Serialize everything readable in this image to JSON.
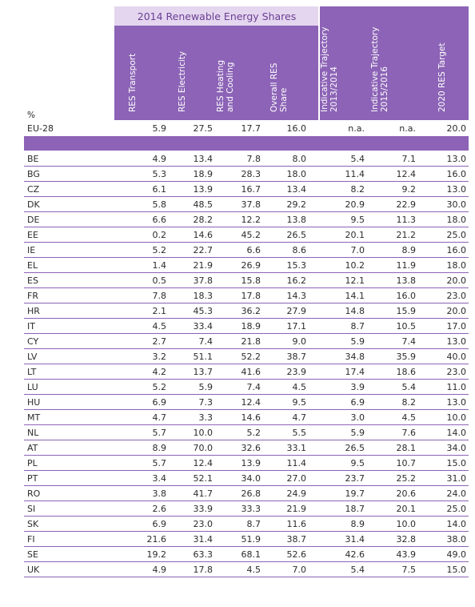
{
  "header": {
    "group_title": "2014 Renewable Energy Shares",
    "unit_label": "%",
    "columns": [
      "RES Transport",
      "RES Electricity",
      "RES Heating\nand Cooling",
      "Overall RES\nShare",
      "Indicative Trajectory\n2013/2014",
      "Indicative Trajectory\n2015/2016",
      "2020 RES Target"
    ]
  },
  "eu_row": {
    "country": "EU-28",
    "values": [
      "5.9",
      "27.5",
      "17.7",
      "16.0",
      "n.a.",
      "n.a.",
      "20.0"
    ]
  },
  "rows": [
    {
      "country": "BE",
      "values": [
        "4.9",
        "13.4",
        "7.8",
        "8.0",
        "5.4",
        "7.1",
        "13.0"
      ]
    },
    {
      "country": "BG",
      "values": [
        "5.3",
        "18.9",
        "28.3",
        "18.0",
        "11.4",
        "12.4",
        "16.0"
      ]
    },
    {
      "country": "CZ",
      "values": [
        "6.1",
        "13.9",
        "16.7",
        "13.4",
        "8.2",
        "9.2",
        "13.0"
      ]
    },
    {
      "country": "DK",
      "values": [
        "5.8",
        "48.5",
        "37.8",
        "29.2",
        "20.9",
        "22.9",
        "30.0"
      ]
    },
    {
      "country": "DE",
      "values": [
        "6.6",
        "28.2",
        "12.2",
        "13.8",
        "9.5",
        "11.3",
        "18.0"
      ]
    },
    {
      "country": "EE",
      "values": [
        "0.2",
        "14.6",
        "45.2",
        "26.5",
        "20.1",
        "21.2",
        "25.0"
      ]
    },
    {
      "country": "IE",
      "values": [
        "5.2",
        "22.7",
        "6.6",
        "8.6",
        "7.0",
        "8.9",
        "16.0"
      ]
    },
    {
      "country": "EL",
      "values": [
        "1.4",
        "21.9",
        "26.9",
        "15.3",
        "10.2",
        "11.9",
        "18.0"
      ]
    },
    {
      "country": "ES",
      "values": [
        "0.5",
        "37.8",
        "15.8",
        "16.2",
        "12.1",
        "13.8",
        "20.0"
      ]
    },
    {
      "country": "FR",
      "values": [
        "7.8",
        "18.3",
        "17.8",
        "14.3",
        "14.1",
        "16.0",
        "23.0"
      ]
    },
    {
      "country": "HR",
      "values": [
        "2.1",
        "45.3",
        "36.2",
        "27.9",
        "14.8",
        "15.9",
        "20.0"
      ]
    },
    {
      "country": "IT",
      "values": [
        "4.5",
        "33.4",
        "18.9",
        "17.1",
        "8.7",
        "10.5",
        "17.0"
      ]
    },
    {
      "country": "CY",
      "values": [
        "2.7",
        "7.4",
        "21.8",
        "9.0",
        "5.9",
        "7.4",
        "13.0"
      ]
    },
    {
      "country": "LV",
      "values": [
        "3.2",
        "51.1",
        "52.2",
        "38.7",
        "34.8",
        "35.9",
        "40.0"
      ]
    },
    {
      "country": "LT",
      "values": [
        "4.2",
        "13.7",
        "41.6",
        "23.9",
        "17.4",
        "18.6",
        "23.0"
      ]
    },
    {
      "country": "LU",
      "values": [
        "5.2",
        "5.9",
        "7.4",
        "4.5",
        "3.9",
        "5.4",
        "11.0"
      ]
    },
    {
      "country": "HU",
      "values": [
        "6.9",
        "7.3",
        "12.4",
        "9.5",
        "6.9",
        "8.2",
        "13.0"
      ]
    },
    {
      "country": "MT",
      "values": [
        "4.7",
        "3.3",
        "14.6",
        "4.7",
        "3.0",
        "4.5",
        "10.0"
      ]
    },
    {
      "country": "NL",
      "values": [
        "5.7",
        "10.0",
        "5.2",
        "5.5",
        "5.9",
        "7.6",
        "14.0"
      ]
    },
    {
      "country": "AT",
      "values": [
        "8.9",
        "70.0",
        "32.6",
        "33.1",
        "26.5",
        "28.1",
        "34.0"
      ]
    },
    {
      "country": "PL",
      "values": [
        "5.7",
        "12.4",
        "13.9",
        "11.4",
        "9.5",
        "10.7",
        "15.0"
      ]
    },
    {
      "country": "PT",
      "values": [
        "3.4",
        "52.1",
        "34.0",
        "27.0",
        "23.7",
        "25.2",
        "31.0"
      ]
    },
    {
      "country": "RO",
      "values": [
        "3.8",
        "41.7",
        "26.8",
        "24.9",
        "19.7",
        "20.6",
        "24.0"
      ]
    },
    {
      "country": "SI",
      "values": [
        "2.6",
        "33.9",
        "33.3",
        "21.9",
        "18.7",
        "20.1",
        "25.0"
      ]
    },
    {
      "country": "SK",
      "values": [
        "6.9",
        "23.0",
        "8.7",
        "11.6",
        "8.9",
        "10.0",
        "14.0"
      ]
    },
    {
      "country": "FI",
      "values": [
        "21.6",
        "31.4",
        "51.9",
        "38.7",
        "31.4",
        "32.8",
        "38.0"
      ]
    },
    {
      "country": "SE",
      "values": [
        "19.2",
        "63.3",
        "68.1",
        "52.6",
        "42.6",
        "43.9",
        "49.0"
      ]
    },
    {
      "country": "UK",
      "values": [
        "4.9",
        "17.8",
        "4.5",
        "7.0",
        "5.4",
        "7.5",
        "15.0"
      ]
    }
  ],
  "colors": {
    "accent": "#8c63b6",
    "accent_light": "#e4d6ef",
    "title_text": "#6a3f93"
  }
}
